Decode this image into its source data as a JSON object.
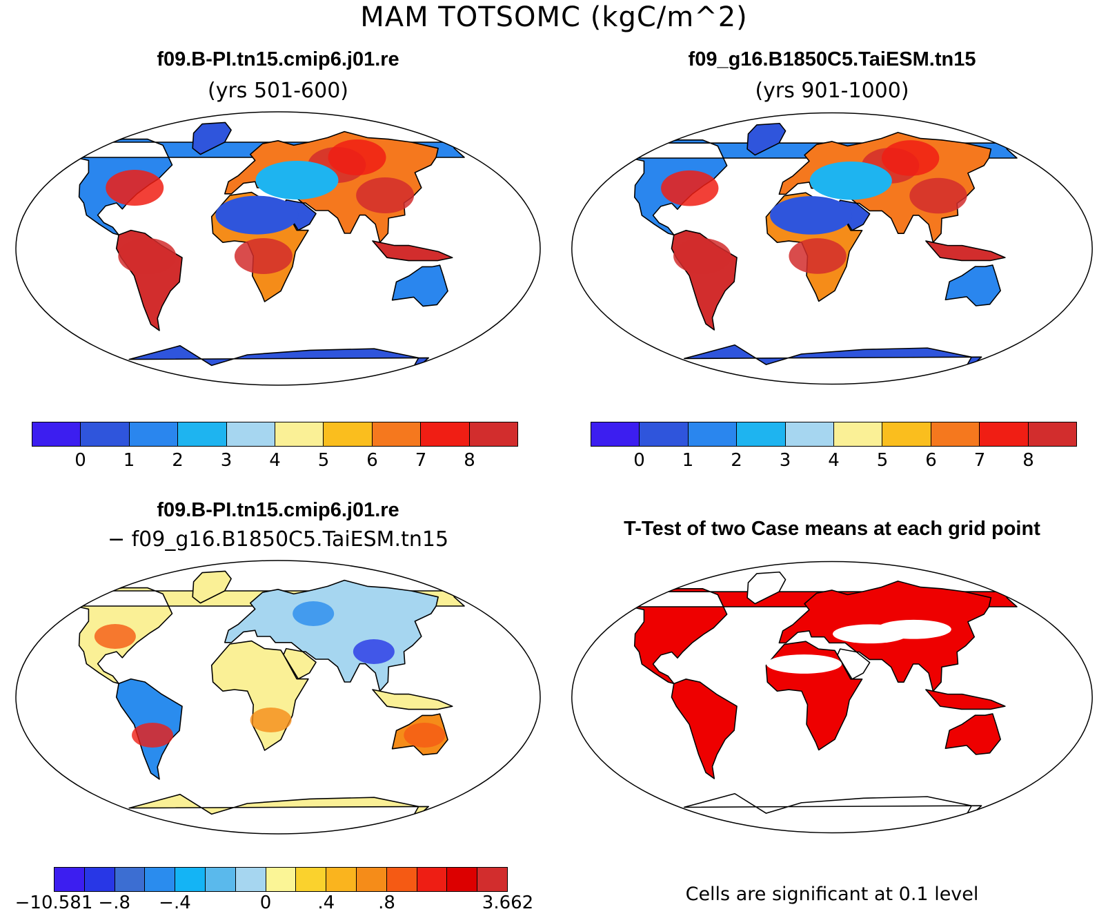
{
  "main_title": "MAM TOTSOMC (kgC/m^2)",
  "panels": {
    "top_left": {
      "title": "f09.B-PI.tn15.cmip6.j01.re",
      "subtitle": "(yrs 501-600)"
    },
    "top_right": {
      "title": "f09_g16.B1850C5.TaiESM.tn15",
      "subtitle": "(yrs 901-1000)"
    },
    "bottom_left": {
      "title": "f09.B-PI.tn15.cmip6.j01.re",
      "subtitle": "− f09_g16.B1850C5.TaiESM.tn15"
    },
    "bottom_right": {
      "title": "T-Test of two Case means at each grid point",
      "note": "Cells are significant at 0.1 level"
    }
  },
  "colorbars": {
    "absolute": {
      "colors": [
        "#3c1ef0",
        "#2f55dc",
        "#2a86ee",
        "#1eb4f0",
        "#a6d6f0",
        "#faf096",
        "#fabe1e",
        "#f5781e",
        "#f01e14",
        "#d22d2d"
      ],
      "labels": [
        "0",
        "1",
        "2",
        "3",
        "4",
        "5",
        "6",
        "7",
        "8"
      ]
    },
    "difference": {
      "colors": [
        "#3c1ef0",
        "#2837e6",
        "#3c6ed2",
        "#2a8cee",
        "#14b4f5",
        "#5ab9ec",
        "#a6d6f0",
        "#fbf596",
        "#fad22d",
        "#fab41e",
        "#f58c19",
        "#f55a14",
        "#ee1e14",
        "#dc0000",
        "#d22d2d"
      ],
      "labels": [
        "−10.581",
        "−.8",
        "−.4",
        "0",
        ".4",
        ".8",
        "3.662"
      ]
    }
  },
  "map_colors": {
    "land_low": "#2f55dc",
    "land_high": "#d22d2d",
    "land_mid": "#2a86ee",
    "diff_base": "#faf096",
    "diff_pos": "#f55a14",
    "diff_neg": "#2a8cee",
    "significant": "#ee0000"
  }
}
